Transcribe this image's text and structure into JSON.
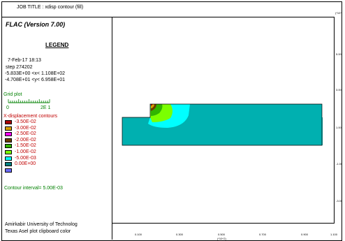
{
  "header": {
    "job_title": "JOB TITLE : xdisp contour (fill)",
    "version": "FLAC (Version 7.00)",
    "topright_scale": "(*10^"
  },
  "legend": {
    "title": "LEGEND",
    "date": "7-Feb-17  18:13",
    "step": "step   274202",
    "xrange": "-5.833E+00 <x<  1.108E+02",
    "yrange": "-4.708E+01 <y<  6.958E+01",
    "grid_plot_label": "Grid plot",
    "grid_scale_left": "0",
    "grid_scale_right": "2E  1",
    "contours_title": "X-displacement contours",
    "contours": [
      {
        "label": "-3.50E-02",
        "color": "#a80000"
      },
      {
        "label": "-3.00E-02",
        "color": "#d7a100"
      },
      {
        "label": "-2.50E-02",
        "color": "#ff00ff"
      },
      {
        "label": "-2.00E-02",
        "color": "#6b3c00"
      },
      {
        "label": "-1.50E-02",
        "color": "#31b500"
      },
      {
        "label": "-1.00E-02",
        "color": "#7bff00"
      },
      {
        "label": "-5.00E-03",
        "color": "#00ffff"
      },
      {
        "label": "0.00E+00",
        "color": "#008080"
      },
      {
        "label": "",
        "color": "#6b6bff"
      }
    ],
    "interval": "Contour interval=  5.00E-03",
    "footer_line1": "Amirkabir University of Technolog",
    "footer_line2": "Texas Asel plot clipboard color"
  },
  "plot": {
    "y_ticks": [
      "5.00",
      "3.00",
      "1.00",
      "-1.00",
      "-3.00"
    ],
    "x_ticks": [
      "0.100",
      "0.300",
      "0.500",
      "0.700",
      "0.900",
      "1.100"
    ],
    "x_unit": "(*10^2)",
    "colors": {
      "base": "#00b0b0",
      "cyan": "#00ffff",
      "lime": "#7bff00",
      "green": "#31b500",
      "brown": "#6b3c00",
      "yellow": "#d7a100",
      "red": "#a80000"
    }
  }
}
